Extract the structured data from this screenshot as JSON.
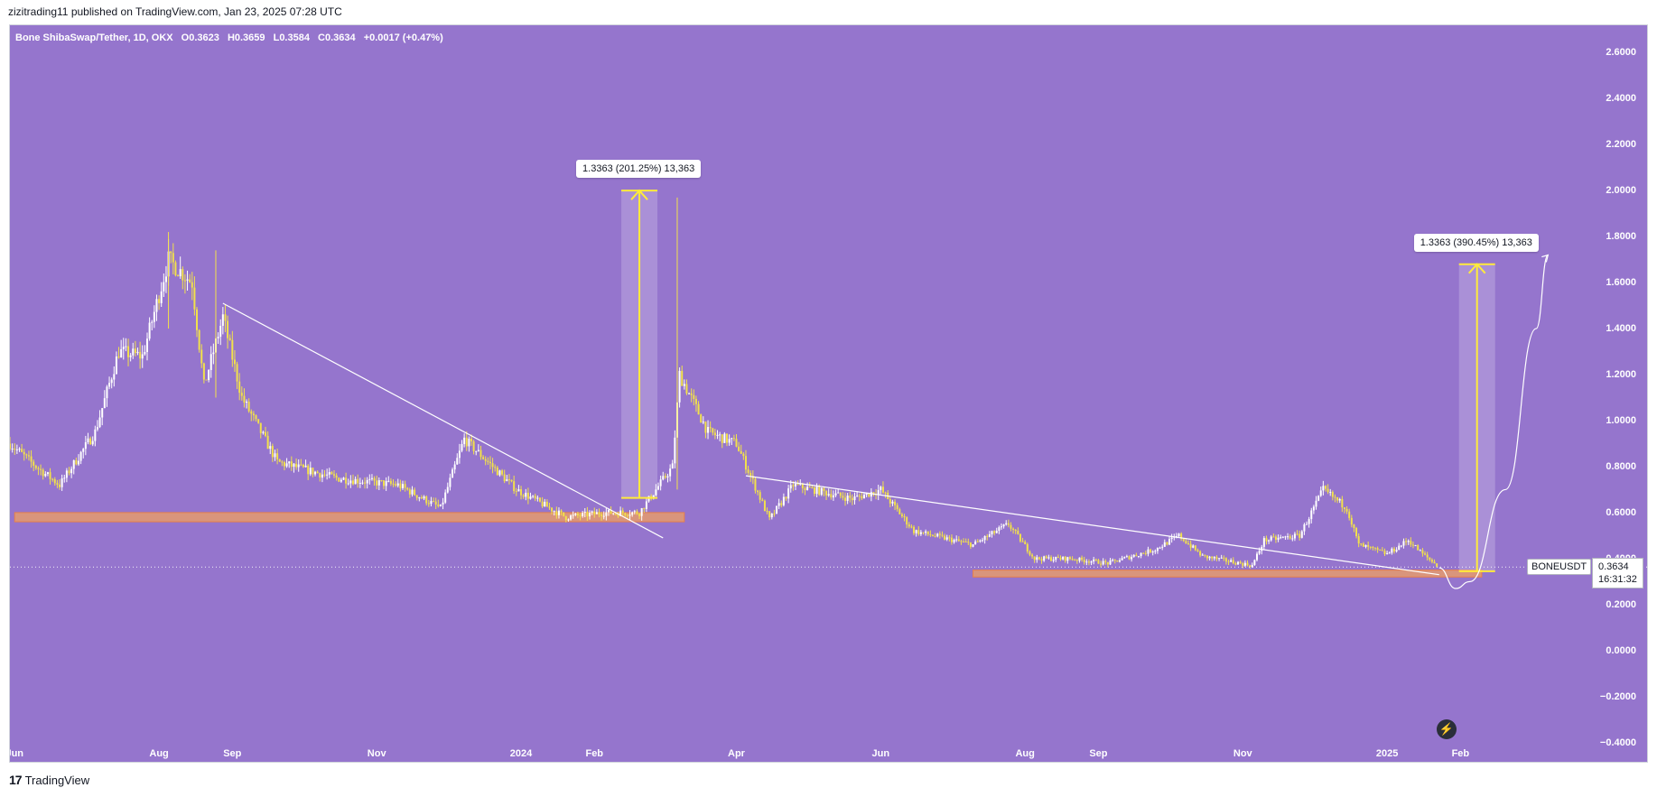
{
  "header": {
    "text": "zizitrading11 published on TradingView.com, Jan 23, 2025 07:28 UTC"
  },
  "legend": {
    "pair": "Bone ShibaSwap/Tether, 1D, OKX",
    "open": "O0.3623",
    "high": "H0.3659",
    "low": "L0.3584",
    "close": "C0.3634",
    "change": "+0.0017 (+0.47%)"
  },
  "callouts": {
    "first": "1.3363 (201.25%) 13,363",
    "second": "1.3363 (390.45%) 13,363"
  },
  "price_scale": {
    "symbol": "BONEUSDT",
    "last_price": "0.3634",
    "countdown": "16:31:32"
  },
  "footer": {
    "brand": "TradingView",
    "logo_text": "17"
  },
  "colors": {
    "background": "#9575cd",
    "candle_up": "#ffffff",
    "candle_down": "#f2e14b",
    "trendline": "#ffffff",
    "support_zone": "#f0a060",
    "measure_arrow": "#ffeb3b"
  },
  "chart_data": {
    "type": "candlestick",
    "title": "Bone ShibaSwap/Tether, 1D, OKX",
    "y_ticks": [
      "2.6000",
      "2.4000",
      "2.2000",
      "2.0000",
      "1.8000",
      "1.6000",
      "1.4000",
      "1.2000",
      "1.0000",
      "0.8000",
      "0.6000",
      "0.4000",
      "0.2000",
      "0.0000",
      "−0.2000",
      "−0.4000"
    ],
    "ylim": [
      -0.46,
      2.66
    ],
    "x_ticks": [
      "Jun",
      "Aug",
      "Sep",
      "Nov",
      "2024",
      "Feb",
      "Apr",
      "Jun",
      "Aug",
      "Sep",
      "Nov",
      "2025",
      "Feb"
    ],
    "x_dates": [
      "2023-06-01",
      "2023-08-01",
      "2023-09-01",
      "2023-11-01",
      "2024-01-01",
      "2024-02-01",
      "2024-04-01",
      "2024-06-01",
      "2024-08-01",
      "2024-09-01",
      "2024-11-01",
      "2025-01-01",
      "2025-02-01"
    ],
    "x_range": [
      "2023-05-30",
      "2025-03-24"
    ],
    "price_path": [
      {
        "date": "2023-05-30",
        "price": 0.9
      },
      {
        "date": "2023-06-10",
        "price": 0.8
      },
      {
        "date": "2023-06-20",
        "price": 0.72
      },
      {
        "date": "2023-07-05",
        "price": 0.95
      },
      {
        "date": "2023-07-15",
        "price": 1.3
      },
      {
        "date": "2023-07-25",
        "price": 1.28
      },
      {
        "date": "2023-08-05",
        "price": 1.7
      },
      {
        "date": "2023-08-15",
        "price": 1.6
      },
      {
        "date": "2023-08-20",
        "price": 1.15
      },
      {
        "date": "2023-08-28",
        "price": 1.45
      },
      {
        "date": "2023-09-05",
        "price": 1.1
      },
      {
        "date": "2023-09-20",
        "price": 0.82
      },
      {
        "date": "2023-10-15",
        "price": 0.75
      },
      {
        "date": "2023-11-10",
        "price": 0.72
      },
      {
        "date": "2023-11-28",
        "price": 0.62
      },
      {
        "date": "2023-12-08",
        "price": 0.92
      },
      {
        "date": "2023-12-30",
        "price": 0.7
      },
      {
        "date": "2024-01-20",
        "price": 0.58
      },
      {
        "date": "2024-02-05",
        "price": 0.6
      },
      {
        "date": "2024-02-20",
        "price": 0.6
      },
      {
        "date": "2024-03-05",
        "price": 0.8
      },
      {
        "date": "2024-03-08",
        "price": 1.2
      },
      {
        "date": "2024-03-20",
        "price": 0.95
      },
      {
        "date": "2024-04-01",
        "price": 0.9
      },
      {
        "date": "2024-04-15",
        "price": 0.57
      },
      {
        "date": "2024-04-25",
        "price": 0.72
      },
      {
        "date": "2024-05-20",
        "price": 0.66
      },
      {
        "date": "2024-06-01",
        "price": 0.7
      },
      {
        "date": "2024-06-15",
        "price": 0.52
      },
      {
        "date": "2024-07-10",
        "price": 0.46
      },
      {
        "date": "2024-07-25",
        "price": 0.55
      },
      {
        "date": "2024-08-05",
        "price": 0.4
      },
      {
        "date": "2024-08-20",
        "price": 0.4
      },
      {
        "date": "2024-09-05",
        "price": 0.38
      },
      {
        "date": "2024-09-25",
        "price": 0.44
      },
      {
        "date": "2024-10-05",
        "price": 0.5
      },
      {
        "date": "2024-10-15",
        "price": 0.41
      },
      {
        "date": "2024-11-05",
        "price": 0.37
      },
      {
        "date": "2024-11-10",
        "price": 0.48
      },
      {
        "date": "2024-11-25",
        "price": 0.5
      },
      {
        "date": "2024-12-05",
        "price": 0.7
      },
      {
        "date": "2024-12-15",
        "price": 0.62
      },
      {
        "date": "2024-12-20",
        "price": 0.46
      },
      {
        "date": "2025-01-01",
        "price": 0.42
      },
      {
        "date": "2025-01-10",
        "price": 0.48
      },
      {
        "date": "2025-01-16",
        "price": 0.42
      },
      {
        "date": "2025-01-23",
        "price": 0.3634
      }
    ],
    "last_price": 0.3634,
    "support_zones": [
      {
        "from": "2023-06-01",
        "to": "2024-03-10",
        "low": 0.56,
        "high": 0.6
      },
      {
        "from": "2024-07-10",
        "to": "2025-02-10",
        "low": 0.32,
        "high": 0.35
      }
    ],
    "trendlines": [
      {
        "from": {
          "date": "2023-08-28",
          "price": 1.51
        },
        "to": {
          "date": "2024-03-01",
          "price": 0.49
        }
      },
      {
        "from": {
          "date": "2024-04-05",
          "price": 0.76
        },
        "to": {
          "date": "2025-01-23",
          "price": 0.33
        }
      }
    ],
    "measurements": [
      {
        "date": "2024-02-20",
        "from": 0.664,
        "to": 2.0,
        "label": "1.3363 (201.25%) 13,363"
      },
      {
        "date": "2025-02-08",
        "from": 0.345,
        "to": 1.68,
        "label": "1.3363 (390.45%) 13,363"
      }
    ],
    "projection_curve": [
      {
        "date": "2025-01-23",
        "price": 0.36
      },
      {
        "date": "2025-01-30",
        "price": 0.27
      },
      {
        "date": "2025-02-05",
        "price": 0.3
      },
      {
        "date": "2025-02-20",
        "price": 0.7
      },
      {
        "date": "2025-03-05",
        "price": 1.4
      },
      {
        "date": "2025-03-10",
        "price": 1.72
      }
    ],
    "grid": false
  }
}
